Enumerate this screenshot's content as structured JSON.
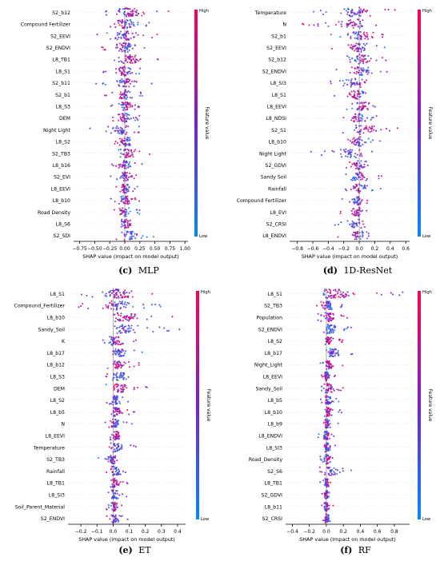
{
  "colors": {
    "high": "#ff0052",
    "low": "#008afc",
    "axis": "#000000",
    "zero_line": "#999999"
  },
  "colorbar": {
    "high_label": "High",
    "low_label": "Low",
    "title": "Feature value"
  },
  "chart_data": [
    {
      "panel": "c",
      "caption_letter": "(c)",
      "caption_name": "MLP",
      "type": "scatter",
      "subtype": "shap-beeswarm",
      "xlabel": "SHAP value (impact on model output)",
      "xlim": [
        -0.85,
        1.05
      ],
      "xticks": [
        -0.75,
        -0.5,
        -0.25,
        0.0,
        0.25,
        0.5,
        0.75,
        1.0
      ],
      "xtick_labels": [
        "−0.75",
        "−0.50",
        "−0.25",
        "0.00",
        "0.25",
        "0.50",
        "0.75",
        "1.00"
      ],
      "features": [
        {
          "name": "S2_b12",
          "min": -0.4,
          "max": 0.85,
          "spread": 0.45
        },
        {
          "name": "Compound Fertilizer",
          "min": -0.5,
          "max": 0.5,
          "spread": 0.4
        },
        {
          "name": "S2_EEVI",
          "min": -0.55,
          "max": 0.55,
          "spread": 0.35
        },
        {
          "name": "S2_ENDVI",
          "min": -0.45,
          "max": 0.45,
          "spread": 0.35
        },
        {
          "name": "L8_TB1",
          "min": -0.3,
          "max": 0.6,
          "spread": 0.3
        },
        {
          "name": "L8_S1",
          "min": -0.4,
          "max": 0.4,
          "spread": 0.3
        },
        {
          "name": "S2_b11",
          "min": -0.5,
          "max": 0.45,
          "spread": 0.3
        },
        {
          "name": "S2_b1",
          "min": -0.35,
          "max": 0.3,
          "spread": 0.25
        },
        {
          "name": "L8_S3",
          "min": -0.3,
          "max": 0.35,
          "spread": 0.25
        },
        {
          "name": "DEM",
          "min": -0.35,
          "max": 0.3,
          "spread": 0.25
        },
        {
          "name": "Night Light",
          "min": -0.6,
          "max": 0.3,
          "spread": 0.25
        },
        {
          "name": "L8_S2",
          "min": -0.3,
          "max": 0.4,
          "spread": 0.22
        },
        {
          "name": "S2_TB3",
          "min": -0.25,
          "max": 0.45,
          "spread": 0.2
        },
        {
          "name": "L8_b16",
          "min": -0.3,
          "max": 0.3,
          "spread": 0.2
        },
        {
          "name": "S2_EVI",
          "min": -0.25,
          "max": 0.3,
          "spread": 0.2
        },
        {
          "name": "L8_EEVI",
          "min": -0.25,
          "max": 0.25,
          "spread": 0.2
        },
        {
          "name": "L8_b10",
          "min": -0.25,
          "max": 0.3,
          "spread": 0.18
        },
        {
          "name": "Road Density",
          "min": -0.3,
          "max": 0.25,
          "spread": 0.15
        },
        {
          "name": "L8_S6",
          "min": -0.2,
          "max": 0.3,
          "spread": 0.15
        },
        {
          "name": "S2_SDI",
          "min": -0.15,
          "max": 0.55,
          "spread": 0.15
        }
      ]
    },
    {
      "panel": "d",
      "caption_letter": "(d)",
      "caption_name": "1D-ResNet",
      "type": "scatter",
      "subtype": "shap-beeswarm",
      "xlabel": "SHAP value (impact on model output)",
      "xlim": [
        -0.9,
        0.65
      ],
      "xticks": [
        -0.8,
        -0.6,
        -0.4,
        -0.2,
        0.0,
        0.2,
        0.4,
        0.6
      ],
      "xtick_labels": [
        "−0.8",
        "−0.6",
        "−0.4",
        "−0.2",
        "0.0",
        "0.2",
        "0.4",
        "0.6"
      ],
      "features": [
        {
          "name": "Temperature",
          "min": -0.7,
          "max": 0.5,
          "spread": 0.35
        },
        {
          "name": "N",
          "min": -0.75,
          "max": 0.4,
          "spread": 0.3
        },
        {
          "name": "S2_b1",
          "min": -0.4,
          "max": 0.4,
          "spread": 0.25
        },
        {
          "name": "S2_EEVI",
          "min": -0.4,
          "max": 0.35,
          "spread": 0.25
        },
        {
          "name": "S2_b12",
          "min": -0.35,
          "max": 0.35,
          "spread": 0.22
        },
        {
          "name": "S2_ENDVI",
          "min": -0.3,
          "max": 0.45,
          "spread": 0.22
        },
        {
          "name": "L8_SI3",
          "min": -0.55,
          "max": 0.3,
          "spread": 0.2
        },
        {
          "name": "L8_S1",
          "min": -0.35,
          "max": 0.25,
          "spread": 0.18
        },
        {
          "name": "L8_EEVI",
          "min": -0.2,
          "max": 0.35,
          "spread": 0.2
        },
        {
          "name": "L8_NDSI",
          "min": -0.3,
          "max": 0.25,
          "spread": 0.18
        },
        {
          "name": "S2_S1",
          "min": -0.3,
          "max": 0.6,
          "spread": 0.2
        },
        {
          "name": "L8_b10",
          "min": -0.35,
          "max": 0.3,
          "spread": 0.18
        },
        {
          "name": "Night Light",
          "min": -0.75,
          "max": 0.25,
          "spread": 0.18
        },
        {
          "name": "S2_GDVI",
          "min": -0.3,
          "max": 0.3,
          "spread": 0.18
        },
        {
          "name": "Sandy Soil",
          "min": -0.3,
          "max": 0.3,
          "spread": 0.15
        },
        {
          "name": "Rainfall",
          "min": -0.25,
          "max": 0.3,
          "spread": 0.15
        },
        {
          "name": "Compound Fertilizer",
          "min": -0.25,
          "max": 0.15,
          "spread": 0.12
        },
        {
          "name": "L8_EVI",
          "min": -0.3,
          "max": 0.2,
          "spread": 0.12
        },
        {
          "name": "S2_CRSI",
          "min": -0.45,
          "max": 0.2,
          "spread": 0.12
        },
        {
          "name": "L8_ENDVI",
          "min": -0.3,
          "max": 0.15,
          "spread": 0.1
        }
      ]
    },
    {
      "panel": "e",
      "caption_letter": "(e)",
      "caption_name": "ET",
      "type": "scatter",
      "subtype": "shap-beeswarm",
      "xlabel": "SHAP value (impact on model output)",
      "xlim": [
        -0.28,
        0.45
      ],
      "xticks": [
        -0.2,
        -0.1,
        0.0,
        0.1,
        0.2,
        0.3,
        0.4
      ],
      "xtick_labels": [
        "−0.2",
        "−0.1",
        "0.0",
        "0.1",
        "0.2",
        "0.3",
        "0.4"
      ],
      "features": [
        {
          "name": "L8_S1",
          "min": -0.22,
          "max": 0.35,
          "spread": 0.45
        },
        {
          "name": "Compound_Fertilizer",
          "min": -0.22,
          "max": 0.3,
          "spread": 0.4
        },
        {
          "name": "L8_b10",
          "min": -0.05,
          "max": 0.38,
          "spread": 0.3
        },
        {
          "name": "Sandy_Soil",
          "min": -0.05,
          "max": 0.42,
          "spread": 0.25
        },
        {
          "name": "K",
          "min": -0.1,
          "max": 0.15,
          "spread": 0.25
        },
        {
          "name": "L8_b17",
          "min": -0.05,
          "max": 0.2,
          "spread": 0.22
        },
        {
          "name": "L8_b12",
          "min": -0.05,
          "max": 0.18,
          "spread": 0.2
        },
        {
          "name": "L8_S3",
          "min": -0.05,
          "max": 0.22,
          "spread": 0.2
        },
        {
          "name": "DEM",
          "min": -0.05,
          "max": 0.22,
          "spread": 0.18
        },
        {
          "name": "L8_S2",
          "min": -0.05,
          "max": 0.12,
          "spread": 0.18
        },
        {
          "name": "L8_b5",
          "min": -0.05,
          "max": 0.15,
          "spread": 0.18
        },
        {
          "name": "N",
          "min": -0.05,
          "max": 0.12,
          "spread": 0.15
        },
        {
          "name": "L8_EEVI",
          "min": -0.05,
          "max": 0.12,
          "spread": 0.15
        },
        {
          "name": "Temperature",
          "min": -0.05,
          "max": 0.15,
          "spread": 0.15
        },
        {
          "name": "S2_TB3",
          "min": -0.1,
          "max": 0.08,
          "spread": 0.15
        },
        {
          "name": "Rainfall",
          "min": -0.05,
          "max": 0.12,
          "spread": 0.15
        },
        {
          "name": "L8_TB1",
          "min": -0.05,
          "max": 0.1,
          "spread": 0.12
        },
        {
          "name": "L8_SI3",
          "min": -0.05,
          "max": 0.1,
          "spread": 0.12
        },
        {
          "name": "Soil_Parent_Material",
          "min": -0.05,
          "max": 0.08,
          "spread": 0.1
        },
        {
          "name": "S2_ENDVI",
          "min": -0.05,
          "max": 0.1,
          "spread": 0.1
        }
      ]
    },
    {
      "panel": "f",
      "caption_letter": "(f)",
      "caption_name": "RF",
      "type": "scatter",
      "subtype": "shap-beeswarm",
      "xlabel": "SHAP value (impact on model output)",
      "xlim": [
        -0.48,
        0.98
      ],
      "xticks": [
        -0.4,
        -0.2,
        0.0,
        0.2,
        0.4,
        0.6,
        0.8
      ],
      "xtick_labels": [
        "−0.4",
        "−0.2",
        "0.0",
        "0.2",
        "0.4",
        "0.6",
        "0.8"
      ],
      "features": [
        {
          "name": "L8_S1",
          "min": -0.42,
          "max": 0.9,
          "spread": 0.5
        },
        {
          "name": "S2_TB3",
          "min": -0.15,
          "max": 0.25,
          "spread": 0.3
        },
        {
          "name": "Population",
          "min": -0.1,
          "max": 0.25,
          "spread": 0.25
        },
        {
          "name": "S2_ENDVI",
          "min": -0.08,
          "max": 0.3,
          "spread": 0.22
        },
        {
          "name": "L8_S2",
          "min": -0.08,
          "max": 0.2,
          "spread": 0.2
        },
        {
          "name": "L8_b17",
          "min": -0.08,
          "max": 0.4,
          "spread": 0.2
        },
        {
          "name": "Night_Light",
          "min": -0.08,
          "max": 0.2,
          "spread": 0.2
        },
        {
          "name": "L8_EEVI",
          "min": -0.08,
          "max": 0.12,
          "spread": 0.18
        },
        {
          "name": "Sandy_Soil",
          "min": -0.08,
          "max": 0.25,
          "spread": 0.18
        },
        {
          "name": "L8_b5",
          "min": -0.08,
          "max": 0.15,
          "spread": 0.18
        },
        {
          "name": "L8_b10",
          "min": -0.08,
          "max": 0.18,
          "spread": 0.15
        },
        {
          "name": "L8_b9",
          "min": -0.08,
          "max": 0.15,
          "spread": 0.15
        },
        {
          "name": "L8_ENDVI",
          "min": -0.12,
          "max": 0.12,
          "spread": 0.15
        },
        {
          "name": "L8_SI3",
          "min": -0.08,
          "max": 0.12,
          "spread": 0.15
        },
        {
          "name": "Road_Density",
          "min": -0.08,
          "max": 0.12,
          "spread": 0.12
        },
        {
          "name": "S2_S6",
          "min": -0.08,
          "max": 0.4,
          "spread": 0.12
        },
        {
          "name": "L8_TB1",
          "min": -0.08,
          "max": 0.1,
          "spread": 0.12
        },
        {
          "name": "S2_GDVI",
          "min": -0.08,
          "max": 0.08,
          "spread": 0.1
        },
        {
          "name": "L8_b11",
          "min": -0.08,
          "max": 0.08,
          "spread": 0.1
        },
        {
          "name": "S2_CRSI",
          "min": -0.08,
          "max": 0.1,
          "spread": 0.1
        }
      ]
    }
  ]
}
